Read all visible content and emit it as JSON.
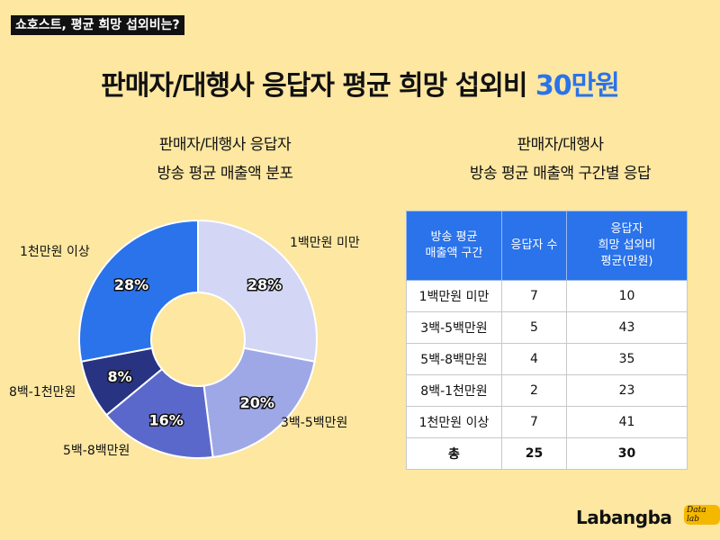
{
  "tag": "쇼호스트, 평균 희망 섭외비는?",
  "title": {
    "main": "판매자/대행사 응답자 평균 희망 섭외비 ",
    "highlight": "30만원"
  },
  "left_subtitle": {
    "line1": "판매자/대행사 응답자",
    "line2": "방송 평균 매출액 분포"
  },
  "right_subtitle": {
    "line1": "판매자/대행사",
    "line2": "방송 평균 매출액 구간별 응답"
  },
  "table": {
    "headers": {
      "col1_l1": "방송 평균",
      "col1_l2": "매출액 구간",
      "col2": "응답자 수",
      "col3_l1": "응답자",
      "col3_l2": "희망 섭외비",
      "col3_l3": "평균(만원)"
    },
    "rows": [
      {
        "range": "1백만원 미만",
        "count": "7",
        "avg": "10"
      },
      {
        "range": "3백-5백만원",
        "count": "5",
        "avg": "43"
      },
      {
        "range": "5백-8백만원",
        "count": "4",
        "avg": "35"
      },
      {
        "range": "8백-1천만원",
        "count": "2",
        "avg": "23"
      },
      {
        "range": "1천만원 이상",
        "count": "7",
        "avg": "41"
      }
    ],
    "total": {
      "label": "총",
      "count": "25",
      "avg": "30"
    }
  },
  "chart_data": {
    "type": "pie",
    "donut": true,
    "categories": [
      "1백만원 미만",
      "3백-5백만원",
      "5백-8백만원",
      "8백-1천만원",
      "1천만원 이상"
    ],
    "values": [
      28,
      20,
      16,
      8,
      28
    ],
    "labels": [
      "28%",
      "20%",
      "16%",
      "8%",
      "28%"
    ],
    "colors": [
      "#d3d6f5",
      "#9fa8e6",
      "#5b68cb",
      "#283382",
      "#2a73ea"
    ],
    "start_angle_deg": 0,
    "direction": "clockwise"
  },
  "logo": {
    "text": "Labangba",
    "badge": "Data lab"
  }
}
